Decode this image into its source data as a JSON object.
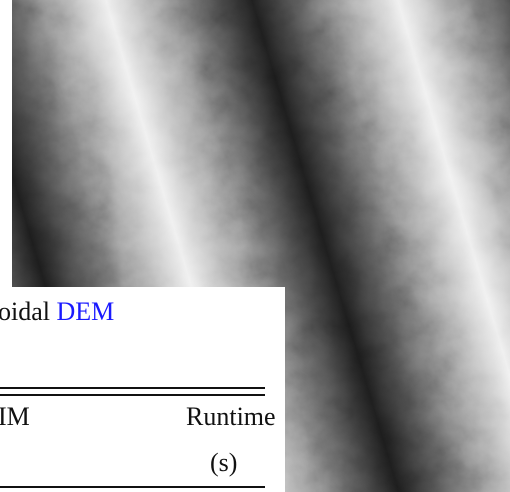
{
  "caption": {
    "text": "oidal",
    "link": "DEM"
  },
  "table": {
    "header": [
      "IM",
      "Runtime",
      "(s)"
    ]
  }
}
